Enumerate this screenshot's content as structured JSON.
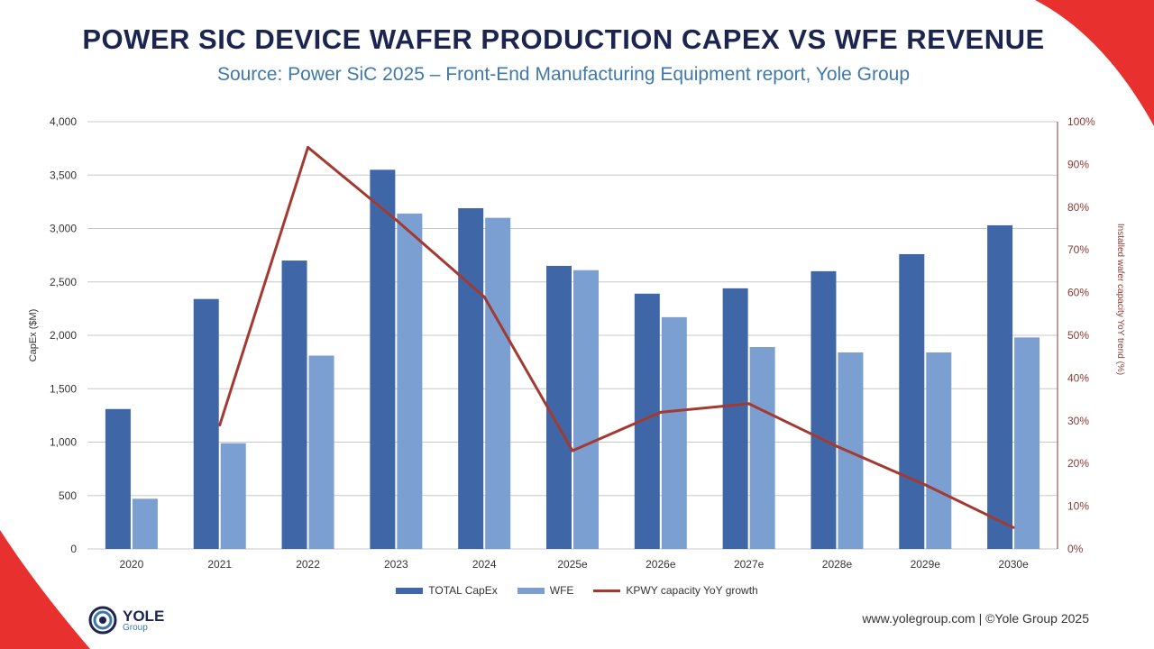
{
  "header": {
    "title": "POWER SIC DEVICE WAFER PRODUCTION CAPEX VS WFE REVENUE",
    "subtitle": "Source: Power SiC 2025 – Front-End Manufacturing Equipment report, Yole Group"
  },
  "colors": {
    "total_capex": "#3f67a8",
    "wfe": "#7a9fd0",
    "growth_line": "#a33a32",
    "accent_red": "#e8312f",
    "title": "#1b2550",
    "subtitle": "#3f79aa"
  },
  "chart_data": {
    "type": "bar",
    "categories": [
      "2020",
      "2021",
      "2022",
      "2023",
      "2024",
      "2025e",
      "2026e",
      "2027e",
      "2028e",
      "2029e",
      "2030e"
    ],
    "series": [
      {
        "name": "TOTAL CapEx",
        "type": "bar",
        "axis": "left",
        "values": [
          1310,
          2340,
          2700,
          3550,
          3190,
          2650,
          2390,
          2440,
          2600,
          2760,
          3030
        ]
      },
      {
        "name": "WFE",
        "type": "bar",
        "axis": "left",
        "values": [
          470,
          990,
          1810,
          3140,
          3100,
          2610,
          2170,
          1890,
          1840,
          1840,
          1980
        ]
      },
      {
        "name": "KPWY capacity YoY growth",
        "type": "line",
        "axis": "right",
        "values": [
          null,
          29,
          94,
          77,
          59,
          23,
          32,
          34,
          24,
          15,
          5
        ]
      }
    ],
    "ylabel": "CapEx ($M)",
    "ylim": [
      0,
      4000
    ],
    "yticks": [
      "0",
      "500",
      "1,000",
      "1,500",
      "2,000",
      "2,500",
      "3,000",
      "3,500",
      "4,000"
    ],
    "y2label": "Installed wafer capacity YoY trend (%)",
    "y2lim": [
      0,
      100
    ],
    "y2ticks": [
      "0%",
      "10%",
      "20%",
      "30%",
      "40%",
      "50%",
      "60%",
      "70%",
      "80%",
      "90%",
      "100%"
    ],
    "grid": true,
    "legend_position": "bottom"
  },
  "legend": {
    "total_capex": "TOTAL CapEx",
    "wfe": "WFE",
    "growth": "KPWY capacity YoY growth"
  },
  "logo": {
    "name": "YOLE",
    "sub": "Group"
  },
  "footer": {
    "text": "www.yolegroup.com | ©Yole Group 2025"
  }
}
